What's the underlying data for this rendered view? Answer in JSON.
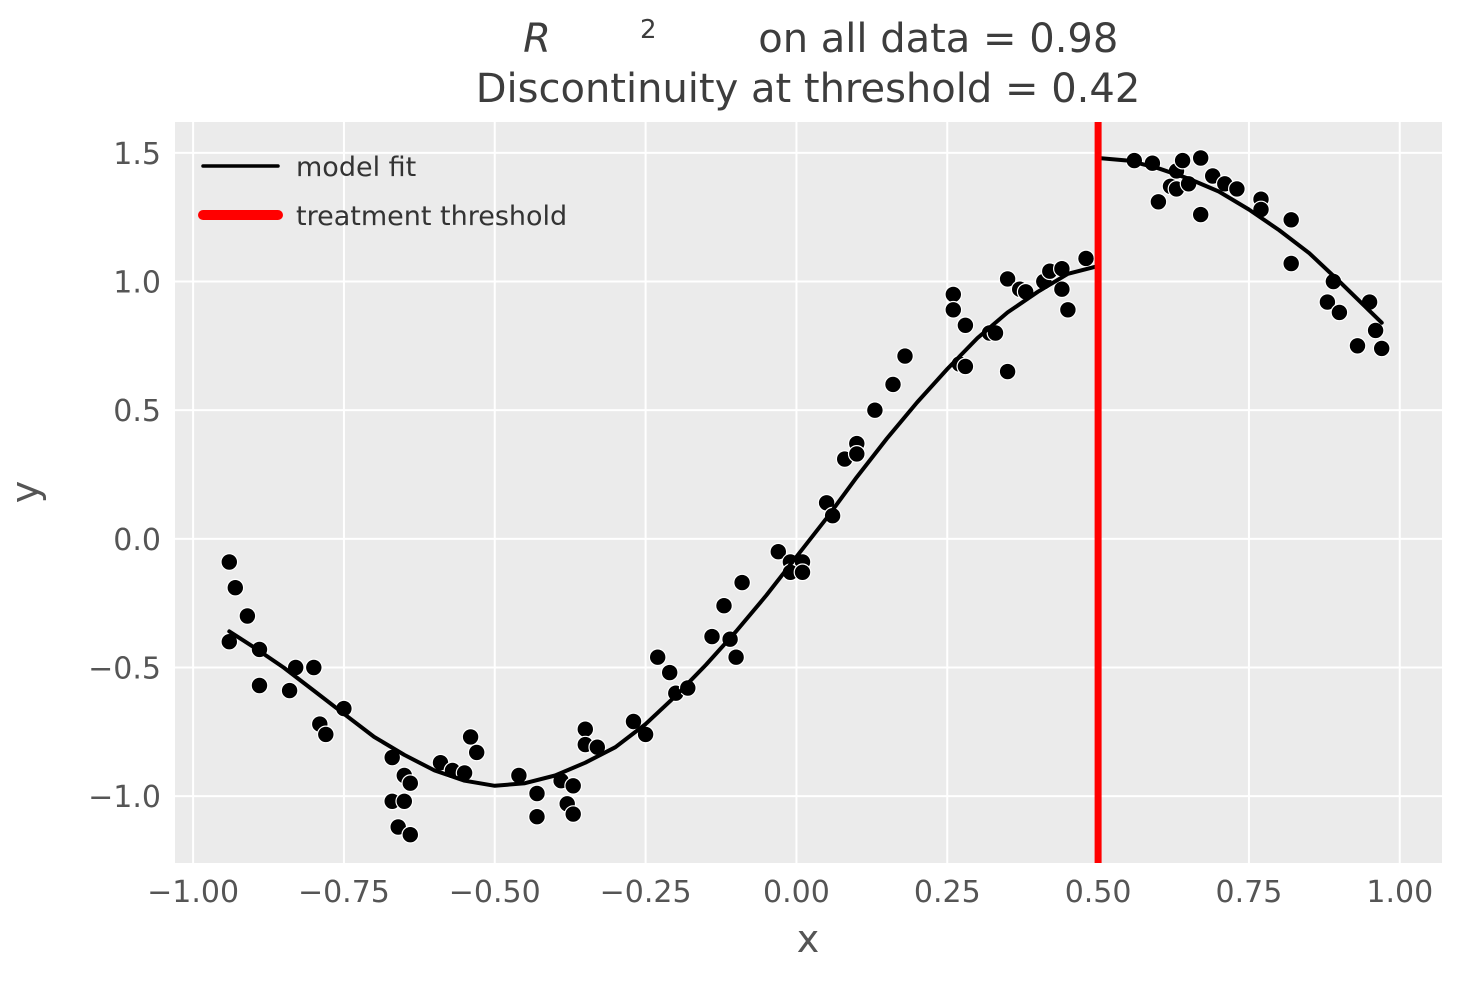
{
  "figure": {
    "title": {
      "math_symbol": "R",
      "exponent": "2",
      "line1_rest": " on all data = 0.98",
      "line2": "Discontinuity at threshold = 0.42"
    },
    "axes": {
      "xlabel": "x",
      "ylabel": "y"
    },
    "legend": [
      {
        "label": "model fit",
        "color": "#000000",
        "line_width": 3.5
      },
      {
        "label": "treatment threshold",
        "color": "#ff0000",
        "line_width": 10
      }
    ]
  },
  "colors": {
    "figure_bg": "#ffffff",
    "plot_bg": "#ebebeb",
    "grid": "#ffffff",
    "tick_text": "#555555",
    "title_text": "#3d3d3d",
    "scatter": "#000000",
    "scatter_edge": "#ffffff",
    "fit_line": "#000000",
    "threshold": "#ff0000"
  },
  "chart_data": {
    "type": "scatter",
    "title": "R^2 on all data = 0.98\nDiscontinuity at threshold = 0.42",
    "xlabel": "x",
    "ylabel": "y",
    "r_squared": 0.98,
    "discontinuity_at_threshold": 0.42,
    "threshold_x": 0.5,
    "grid": true,
    "legend_position": "upper left",
    "xlim": [
      -1.03,
      1.07
    ],
    "ylim": [
      -1.26,
      1.62
    ],
    "x_ticks": [
      -1.0,
      -0.75,
      -0.5,
      -0.25,
      0.0,
      0.25,
      0.5,
      0.75,
      1.0
    ],
    "x_tick_labels": [
      "−1.00",
      "−0.75",
      "−0.50",
      "−0.25",
      "0.00",
      "0.25",
      "0.50",
      "0.75",
      "1.00"
    ],
    "y_ticks": [
      1.5,
      1.0,
      0.5,
      0.0,
      -0.5,
      -1.0
    ],
    "y_tick_labels": [
      "1.5",
      "1.0",
      "0.5",
      "0.0",
      "−0.5",
      "−1.0"
    ],
    "scatter_points": [
      [
        -0.94,
        -0.09
      ],
      [
        -0.93,
        -0.19
      ],
      [
        -0.91,
        -0.3
      ],
      [
        -0.94,
        -0.4
      ],
      [
        -0.89,
        -0.43
      ],
      [
        -0.83,
        -0.5
      ],
      [
        -0.8,
        -0.5
      ],
      [
        -0.89,
        -0.57
      ],
      [
        -0.84,
        -0.59
      ],
      [
        -0.75,
        -0.66
      ],
      [
        -0.79,
        -0.72
      ],
      [
        -0.78,
        -0.76
      ],
      [
        -0.67,
        -0.85
      ],
      [
        -0.65,
        -0.92
      ],
      [
        -0.64,
        -0.95
      ],
      [
        -0.67,
        -1.02
      ],
      [
        -0.65,
        -1.02
      ],
      [
        -0.66,
        -1.12
      ],
      [
        -0.64,
        -1.15
      ],
      [
        -0.59,
        -0.87
      ],
      [
        -0.57,
        -0.9
      ],
      [
        -0.55,
        -0.91
      ],
      [
        -0.54,
        -0.77
      ],
      [
        -0.53,
        -0.83
      ],
      [
        -0.46,
        -0.92
      ],
      [
        -0.43,
        -0.99
      ],
      [
        -0.43,
        -1.08
      ],
      [
        -0.39,
        -0.94
      ],
      [
        -0.38,
        -1.03
      ],
      [
        -0.37,
        -0.96
      ],
      [
        -0.37,
        -1.07
      ],
      [
        -0.35,
        -0.74
      ],
      [
        -0.35,
        -0.8
      ],
      [
        -0.33,
        -0.81
      ],
      [
        -0.27,
        -0.71
      ],
      [
        -0.25,
        -0.76
      ],
      [
        -0.23,
        -0.46
      ],
      [
        -0.21,
        -0.52
      ],
      [
        -0.2,
        -0.6
      ],
      [
        -0.18,
        -0.58
      ],
      [
        -0.14,
        -0.38
      ],
      [
        -0.12,
        -0.26
      ],
      [
        -0.11,
        -0.39
      ],
      [
        -0.1,
        -0.46
      ],
      [
        -0.09,
        -0.17
      ],
      [
        -0.03,
        -0.05
      ],
      [
        -0.01,
        -0.09
      ],
      [
        0.01,
        -0.09
      ],
      [
        -0.01,
        -0.13
      ],
      [
        0.01,
        -0.13
      ],
      [
        0.05,
        0.14
      ],
      [
        0.06,
        0.09
      ],
      [
        0.08,
        0.31
      ],
      [
        0.1,
        0.37
      ],
      [
        0.1,
        0.33
      ],
      [
        0.13,
        0.5
      ],
      [
        0.16,
        0.6
      ],
      [
        0.18,
        0.71
      ],
      [
        0.26,
        0.95
      ],
      [
        0.26,
        0.89
      ],
      [
        0.28,
        0.83
      ],
      [
        0.27,
        0.68
      ],
      [
        0.28,
        0.67
      ],
      [
        0.32,
        0.8
      ],
      [
        0.33,
        0.8
      ],
      [
        0.35,
        1.01
      ],
      [
        0.35,
        0.65
      ],
      [
        0.37,
        0.97
      ],
      [
        0.38,
        0.96
      ],
      [
        0.41,
        1.0
      ],
      [
        0.42,
        1.04
      ],
      [
        0.44,
        1.05
      ],
      [
        0.44,
        0.97
      ],
      [
        0.45,
        0.89
      ],
      [
        0.48,
        1.09
      ],
      [
        0.56,
        1.47
      ],
      [
        0.59,
        1.46
      ],
      [
        0.6,
        1.31
      ],
      [
        0.62,
        1.37
      ],
      [
        0.63,
        1.36
      ],
      [
        0.63,
        1.43
      ],
      [
        0.64,
        1.47
      ],
      [
        0.65,
        1.38
      ],
      [
        0.67,
        1.48
      ],
      [
        0.67,
        1.26
      ],
      [
        0.69,
        1.41
      ],
      [
        0.71,
        1.38
      ],
      [
        0.73,
        1.36
      ],
      [
        0.77,
        1.32
      ],
      [
        0.77,
        1.28
      ],
      [
        0.82,
        1.24
      ],
      [
        0.82,
        1.07
      ],
      [
        0.89,
        1.0
      ],
      [
        0.88,
        0.92
      ],
      [
        0.9,
        0.88
      ],
      [
        0.95,
        0.92
      ],
      [
        0.96,
        0.81
      ],
      [
        0.93,
        0.75
      ],
      [
        0.97,
        0.74
      ]
    ],
    "model_fit": {
      "name": "model fit",
      "segments": [
        [
          [
            -0.94,
            -0.36
          ],
          [
            -0.9,
            -0.42
          ],
          [
            -0.85,
            -0.5
          ],
          [
            -0.8,
            -0.59
          ],
          [
            -0.75,
            -0.68
          ],
          [
            -0.7,
            -0.77
          ],
          [
            -0.65,
            -0.84
          ],
          [
            -0.6,
            -0.9
          ],
          [
            -0.55,
            -0.94
          ],
          [
            -0.5,
            -0.96
          ],
          [
            -0.45,
            -0.95
          ],
          [
            -0.4,
            -0.92
          ],
          [
            -0.35,
            -0.87
          ],
          [
            -0.3,
            -0.81
          ],
          [
            -0.25,
            -0.72
          ],
          [
            -0.2,
            -0.61
          ],
          [
            -0.15,
            -0.49
          ],
          [
            -0.1,
            -0.36
          ],
          [
            -0.05,
            -0.22
          ],
          [
            0.0,
            -0.07
          ],
          [
            0.05,
            0.08
          ],
          [
            0.1,
            0.24
          ],
          [
            0.15,
            0.39
          ],
          [
            0.2,
            0.53
          ],
          [
            0.25,
            0.66
          ],
          [
            0.3,
            0.78
          ],
          [
            0.35,
            0.88
          ],
          [
            0.4,
            0.96
          ],
          [
            0.45,
            1.03
          ],
          [
            0.5,
            1.06
          ]
        ],
        [
          [
            0.5,
            1.48
          ],
          [
            0.55,
            1.47
          ],
          [
            0.6,
            1.44
          ],
          [
            0.65,
            1.4
          ],
          [
            0.7,
            1.35
          ],
          [
            0.75,
            1.28
          ],
          [
            0.8,
            1.2
          ],
          [
            0.85,
            1.11
          ],
          [
            0.9,
            1.0
          ],
          [
            0.97,
            0.84
          ]
        ]
      ]
    },
    "threshold_line": {
      "name": "treatment threshold",
      "x": 0.5
    }
  }
}
